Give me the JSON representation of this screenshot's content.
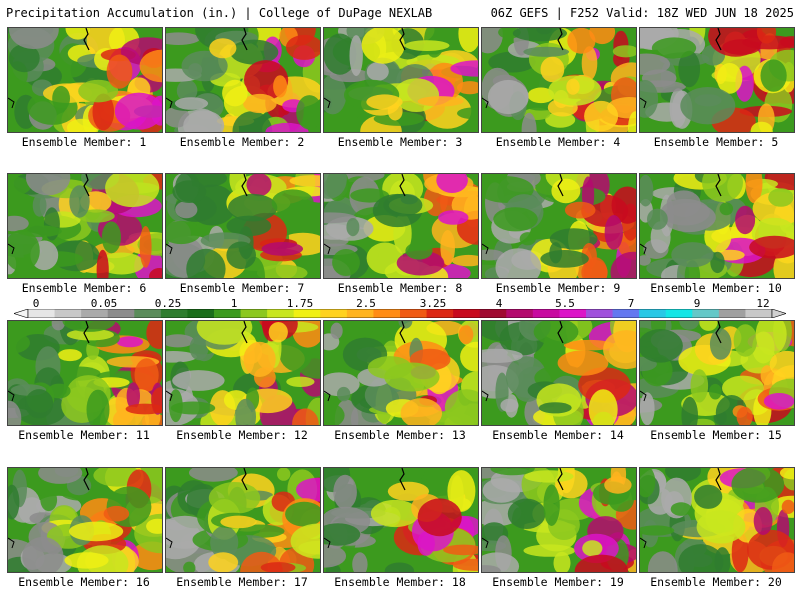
{
  "header": {
    "left": "Precipitation Accumulation (in.) | College of DuPage NEXLAB",
    "right": "06Z GEFS | F252 Valid: 18Z WED JUN 18 2025"
  },
  "colorbar": {
    "labels": [
      "0",
      "0.05",
      "0.25",
      "1",
      "1.75",
      "2.5",
      "3.25",
      "4",
      "5.5",
      "7",
      "9",
      "12"
    ],
    "colors": [
      "#e6e6e6",
      "#c8c8c8",
      "#aaaaaa",
      "#8c8c8c",
      "#5a8c5a",
      "#2f7d2f",
      "#1b6e1b",
      "#3c9a1e",
      "#8cc81e",
      "#c8e61e",
      "#f0f014",
      "#ffd21e",
      "#ffb41e",
      "#ff8c14",
      "#f05a14",
      "#dc2814",
      "#c80a1e",
      "#a00a32",
      "#b40a6e",
      "#c80aa0",
      "#dc14c8",
      "#a050dc",
      "#6478f0",
      "#28c8e6",
      "#14e6e6",
      "#64c8c8",
      "#a0a0a0",
      "#c8c8c8"
    ]
  },
  "members": [
    {
      "label": "Ensemble Member: 1"
    },
    {
      "label": "Ensemble Member: 2"
    },
    {
      "label": "Ensemble Member: 3"
    },
    {
      "label": "Ensemble Member: 4"
    },
    {
      "label": "Ensemble Member: 5"
    },
    {
      "label": "Ensemble Member: 6"
    },
    {
      "label": "Ensemble Member: 7"
    },
    {
      "label": "Ensemble Member: 8"
    },
    {
      "label": "Ensemble Member: 9"
    },
    {
      "label": "Ensemble Member: 10"
    },
    {
      "label": "Ensemble Member: 11"
    },
    {
      "label": "Ensemble Member: 12"
    },
    {
      "label": "Ensemble Member: 13"
    },
    {
      "label": "Ensemble Member: 14"
    },
    {
      "label": "Ensemble Member: 15"
    },
    {
      "label": "Ensemble Member: 16"
    },
    {
      "label": "Ensemble Member: 17"
    },
    {
      "label": "Ensemble Member: 18"
    },
    {
      "label": "Ensemble Member: 19"
    },
    {
      "label": "Ensemble Member: 20"
    }
  ]
}
